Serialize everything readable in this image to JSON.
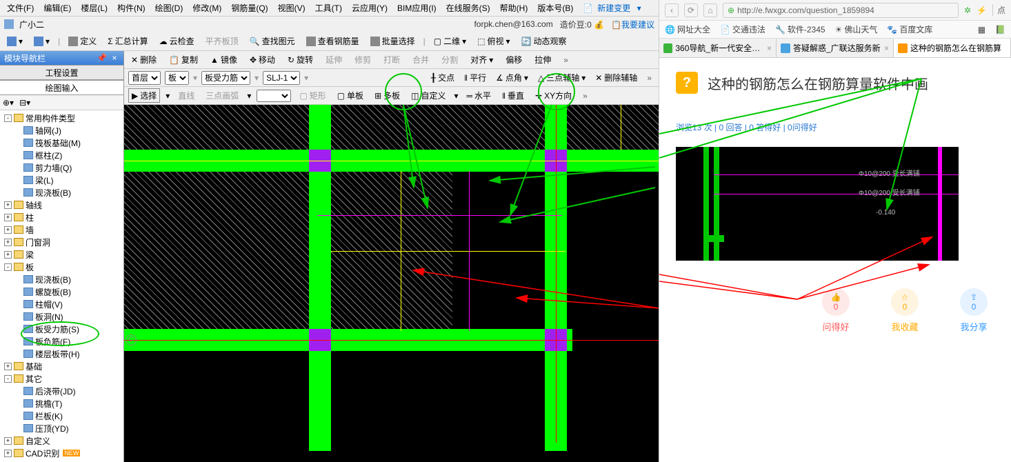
{
  "menus": [
    "文件(F)",
    "编辑(E)",
    "楼层(L)",
    "构件(N)",
    "绘图(D)",
    "修改(M)",
    "钢筋量(Q)",
    "视图(V)",
    "工具(T)",
    "云应用(Y)",
    "BIM应用(I)",
    "在线服务(S)",
    "帮助(H)",
    "版本号(B)",
    "新建变更"
  ],
  "app_user": "广小二",
  "title_right": {
    "email": "forpk.chen@163.com",
    "credit_label": "造价豆:",
    "credit_value": "0",
    "feedback": "我要建议"
  },
  "toolbar1": [
    "定义",
    "汇总计算",
    "云检查",
    "平齐板顶",
    "查找图元",
    "查看钢筋量",
    "批量选择",
    "二维",
    "俯视",
    "动态观察"
  ],
  "sidebar": {
    "title": "模块导航栏",
    "tabs": [
      "工程设置",
      "绘图输入"
    ]
  },
  "wa_toolbar": [
    "删除",
    "复制",
    "镜像",
    "移动",
    "旋转",
    "延伸",
    "修剪",
    "打断",
    "合并",
    "分割",
    "对齐",
    "偏移",
    "拉伸"
  ],
  "wa_sel": {
    "floor": "首层",
    "type": "板",
    "subtype": "板受力筋",
    "code": "SLJ-1"
  },
  "wa_sub": [
    "交点",
    "平行",
    "点角",
    "三点辅轴",
    "删除辅轴"
  ],
  "wa_sub2": {
    "select": "选择",
    "line": "直线",
    "arc": "三点画弧",
    "rect": "矩形",
    "single": "单板",
    "multi": "多板",
    "custom": "自定义",
    "horiz": "水平",
    "vert": "垂直",
    "xy": "XY方向"
  },
  "tree": [
    {
      "lvl": 0,
      "exp": "-",
      "fold": true,
      "t": "常用构件类型"
    },
    {
      "lvl": 1,
      "ico": true,
      "t": "轴网(J)"
    },
    {
      "lvl": 1,
      "ico": true,
      "t": "筏板基础(M)"
    },
    {
      "lvl": 1,
      "ico": true,
      "t": "框柱(Z)"
    },
    {
      "lvl": 1,
      "ico": true,
      "t": "剪力墙(Q)"
    },
    {
      "lvl": 1,
      "ico": true,
      "t": "梁(L)"
    },
    {
      "lvl": 1,
      "ico": true,
      "t": "现浇板(B)"
    },
    {
      "lvl": 0,
      "exp": "+",
      "fold": true,
      "t": "轴线"
    },
    {
      "lvl": 0,
      "exp": "+",
      "fold": true,
      "t": "柱"
    },
    {
      "lvl": 0,
      "exp": "+",
      "fold": true,
      "t": "墙"
    },
    {
      "lvl": 0,
      "exp": "+",
      "fold": true,
      "t": "门窗洞"
    },
    {
      "lvl": 0,
      "exp": "+",
      "fold": true,
      "t": "梁"
    },
    {
      "lvl": 0,
      "exp": "-",
      "fold": true,
      "t": "板"
    },
    {
      "lvl": 1,
      "ico": true,
      "t": "现浇板(B)"
    },
    {
      "lvl": 1,
      "ico": true,
      "t": "螺旋板(B)"
    },
    {
      "lvl": 1,
      "ico": true,
      "t": "柱帽(V)"
    },
    {
      "lvl": 1,
      "ico": true,
      "t": "板洞(N)"
    },
    {
      "lvl": 1,
      "ico": true,
      "t": "板受力筋(S)",
      "circled": true
    },
    {
      "lvl": 1,
      "ico": true,
      "t": "板负筋(F)"
    },
    {
      "lvl": 1,
      "ico": true,
      "t": "楼层板带(H)"
    },
    {
      "lvl": 0,
      "exp": "+",
      "fold": true,
      "t": "基础"
    },
    {
      "lvl": 0,
      "exp": "-",
      "fold": true,
      "t": "其它"
    },
    {
      "lvl": 1,
      "ico": true,
      "t": "后浇带(JD)"
    },
    {
      "lvl": 1,
      "ico": true,
      "t": "挑檐(T)"
    },
    {
      "lvl": 1,
      "ico": true,
      "t": "栏板(K)"
    },
    {
      "lvl": 1,
      "ico": true,
      "t": "压顶(YD)"
    },
    {
      "lvl": 0,
      "exp": "+",
      "fold": true,
      "t": "自定义"
    },
    {
      "lvl": 0,
      "exp": "+",
      "fold": true,
      "t": "CAD识别",
      "new": true
    }
  ],
  "browser": {
    "url": "http://e.fwxgx.com/question_1859894",
    "bookmarks": [
      "网址大全",
      "交通违法",
      "软件-2345",
      "佛山天气",
      "百度文库"
    ],
    "tabs": [
      {
        "t": "360导航_新一代安全上网",
        "c": "#3cb43c"
      },
      {
        "t": "答疑解惑_广联达服务新",
        "c": "#4aa3e0"
      },
      {
        "t": "这种的钢筋怎么在钢筋算",
        "c": "#ff9600",
        "active": true
      }
    ],
    "question": {
      "title": "这种的钢筋怎么在钢筋算量软件中画",
      "stats": "浏览13 次 | 0 回答 | 0 答得好 | 0问得好",
      "annotations": [
        "Φ10@200 受长满铺",
        "Φ10@200 受长满铺",
        "-0.140"
      ],
      "actions": [
        {
          "icon": "👍",
          "count": "0",
          "label": "问得好",
          "color": "#ff5a5a",
          "bg": "#ffe8e8"
        },
        {
          "icon": "☆",
          "count": "0",
          "label": "我收藏",
          "color": "#ffaa00",
          "bg": "#fff4e0"
        },
        {
          "icon": "⇪",
          "count": "0",
          "label": "我分享",
          "color": "#3399ff",
          "bg": "#e6f2ff"
        }
      ]
    }
  }
}
